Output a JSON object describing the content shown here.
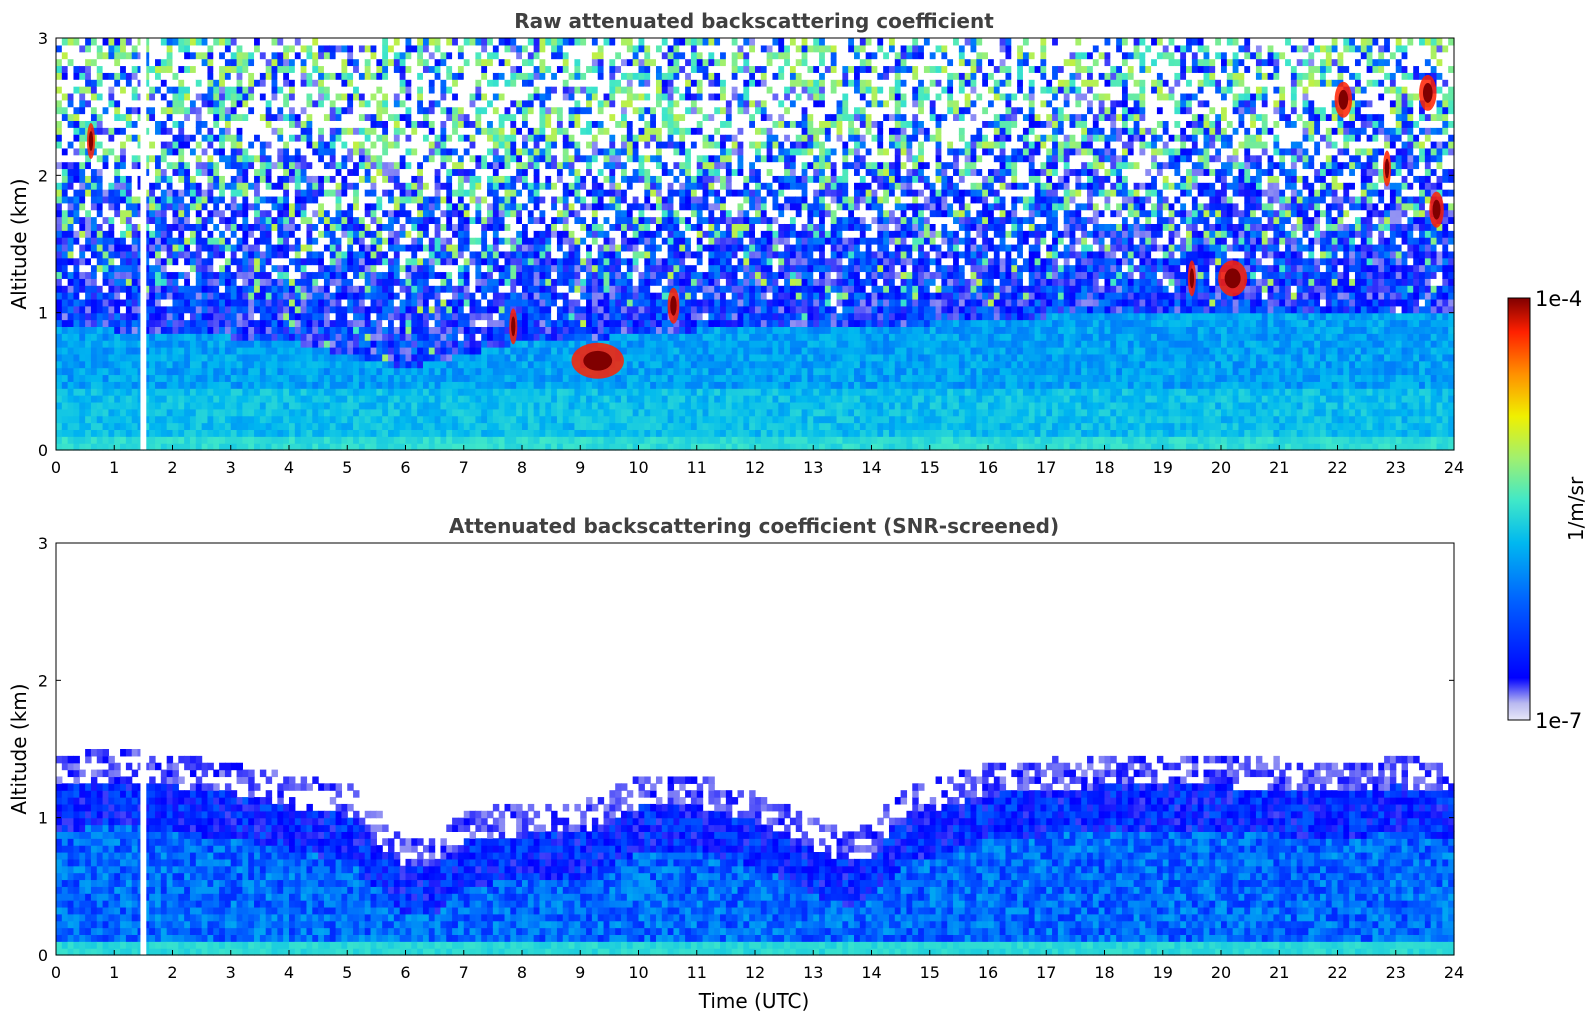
{
  "chart_data": [
    {
      "type": "heatmap",
      "title": "Raw attenuated backscattering coefficient",
      "xlabel": "",
      "ylabel": "Altitude (km)",
      "xlim": [
        0,
        24
      ],
      "ylim": [
        0,
        3
      ],
      "x_ticks": [
        "0",
        "1",
        "2",
        "3",
        "4",
        "5",
        "6",
        "7",
        "8",
        "9",
        "10",
        "11",
        "12",
        "13",
        "14",
        "15",
        "16",
        "17",
        "18",
        "19",
        "20",
        "21",
        "22",
        "23",
        "24"
      ],
      "y_ticks": [
        "0",
        "1",
        "2",
        "3"
      ],
      "features": {
        "boundary_layer_top_km": [
          [
            0,
            0.9
          ],
          [
            2,
            0.85
          ],
          [
            4,
            0.8
          ],
          [
            6,
            0.6
          ],
          [
            7,
            0.7
          ],
          [
            8,
            0.8
          ],
          [
            9,
            0.8
          ],
          [
            10,
            0.85
          ],
          [
            12,
            0.9
          ],
          [
            14,
            0.9
          ],
          [
            16,
            0.95
          ],
          [
            18,
            1.0
          ],
          [
            20,
            1.0
          ],
          [
            22,
            1.0
          ],
          [
            24,
            1.0
          ]
        ],
        "data_gap_hours": [
          1.45,
          1.55
        ],
        "clouds": [
          {
            "t": 9.3,
            "alt_km": 0.65,
            "width_h": 0.9
          },
          {
            "t": 10.6,
            "alt_km": 1.05,
            "width_h": 0.2
          },
          {
            "t": 7.85,
            "alt_km": 0.9,
            "width_h": 0.1
          },
          {
            "t": 0.6,
            "alt_km": 2.25,
            "width_h": 0.1
          },
          {
            "t": 20.2,
            "alt_km": 1.25,
            "width_h": 0.5
          },
          {
            "t": 19.5,
            "alt_km": 1.25,
            "width_h": 0.1
          },
          {
            "t": 22.1,
            "alt_km": 2.55,
            "width_h": 0.3
          },
          {
            "t": 22.85,
            "alt_km": 2.05,
            "width_h": 0.1
          },
          {
            "t": 23.55,
            "alt_km": 2.6,
            "width_h": 0.3
          },
          {
            "t": 23.7,
            "alt_km": 1.75,
            "width_h": 0.25
          }
        ]
      }
    },
    {
      "type": "heatmap",
      "title": "Attenuated backscattering coefficient (SNR-screened)",
      "xlabel": "Time (UTC)",
      "ylabel": "Altitude (km)",
      "xlim": [
        0,
        24
      ],
      "ylim": [
        0,
        3
      ],
      "x_ticks": [
        "0",
        "1",
        "2",
        "3",
        "4",
        "5",
        "6",
        "7",
        "8",
        "9",
        "10",
        "11",
        "12",
        "13",
        "14",
        "15",
        "16",
        "17",
        "18",
        "19",
        "20",
        "21",
        "22",
        "23",
        "24"
      ],
      "y_ticks": [
        "0",
        "1",
        "2",
        "3"
      ],
      "features": {
        "signal_top_km": [
          [
            0,
            1.35
          ],
          [
            1,
            1.4
          ],
          [
            2,
            1.35
          ],
          [
            3,
            1.3
          ],
          [
            4,
            1.2
          ],
          [
            5,
            1.15
          ],
          [
            6,
            0.75
          ],
          [
            6.5,
            0.75
          ],
          [
            7,
            0.95
          ],
          [
            8,
            1.0
          ],
          [
            9,
            1.0
          ],
          [
            10,
            1.2
          ],
          [
            11,
            1.2
          ],
          [
            12,
            1.1
          ],
          [
            13,
            0.9
          ],
          [
            13.6,
            0.8
          ],
          [
            14,
            0.85
          ],
          [
            14.5,
            1.1
          ],
          [
            16,
            1.3
          ],
          [
            18,
            1.35
          ],
          [
            20,
            1.35
          ],
          [
            22,
            1.3
          ],
          [
            23,
            1.35
          ],
          [
            24,
            1.3
          ]
        ],
        "data_gap_hours": [
          1.45,
          1.55
        ]
      }
    }
  ],
  "colorbar": {
    "label": "1/m/sr",
    "max_label": "1e-4",
    "min_label": "1e-7",
    "scale": "log",
    "colormap": "jet",
    "colors": [
      "#e8e8f8",
      "#b8b8f0",
      "#0000ff",
      "#0060ff",
      "#00b8f0",
      "#40e8c8",
      "#a0f070",
      "#f0f000",
      "#ff9000",
      "#ff2000",
      "#800000"
    ]
  }
}
